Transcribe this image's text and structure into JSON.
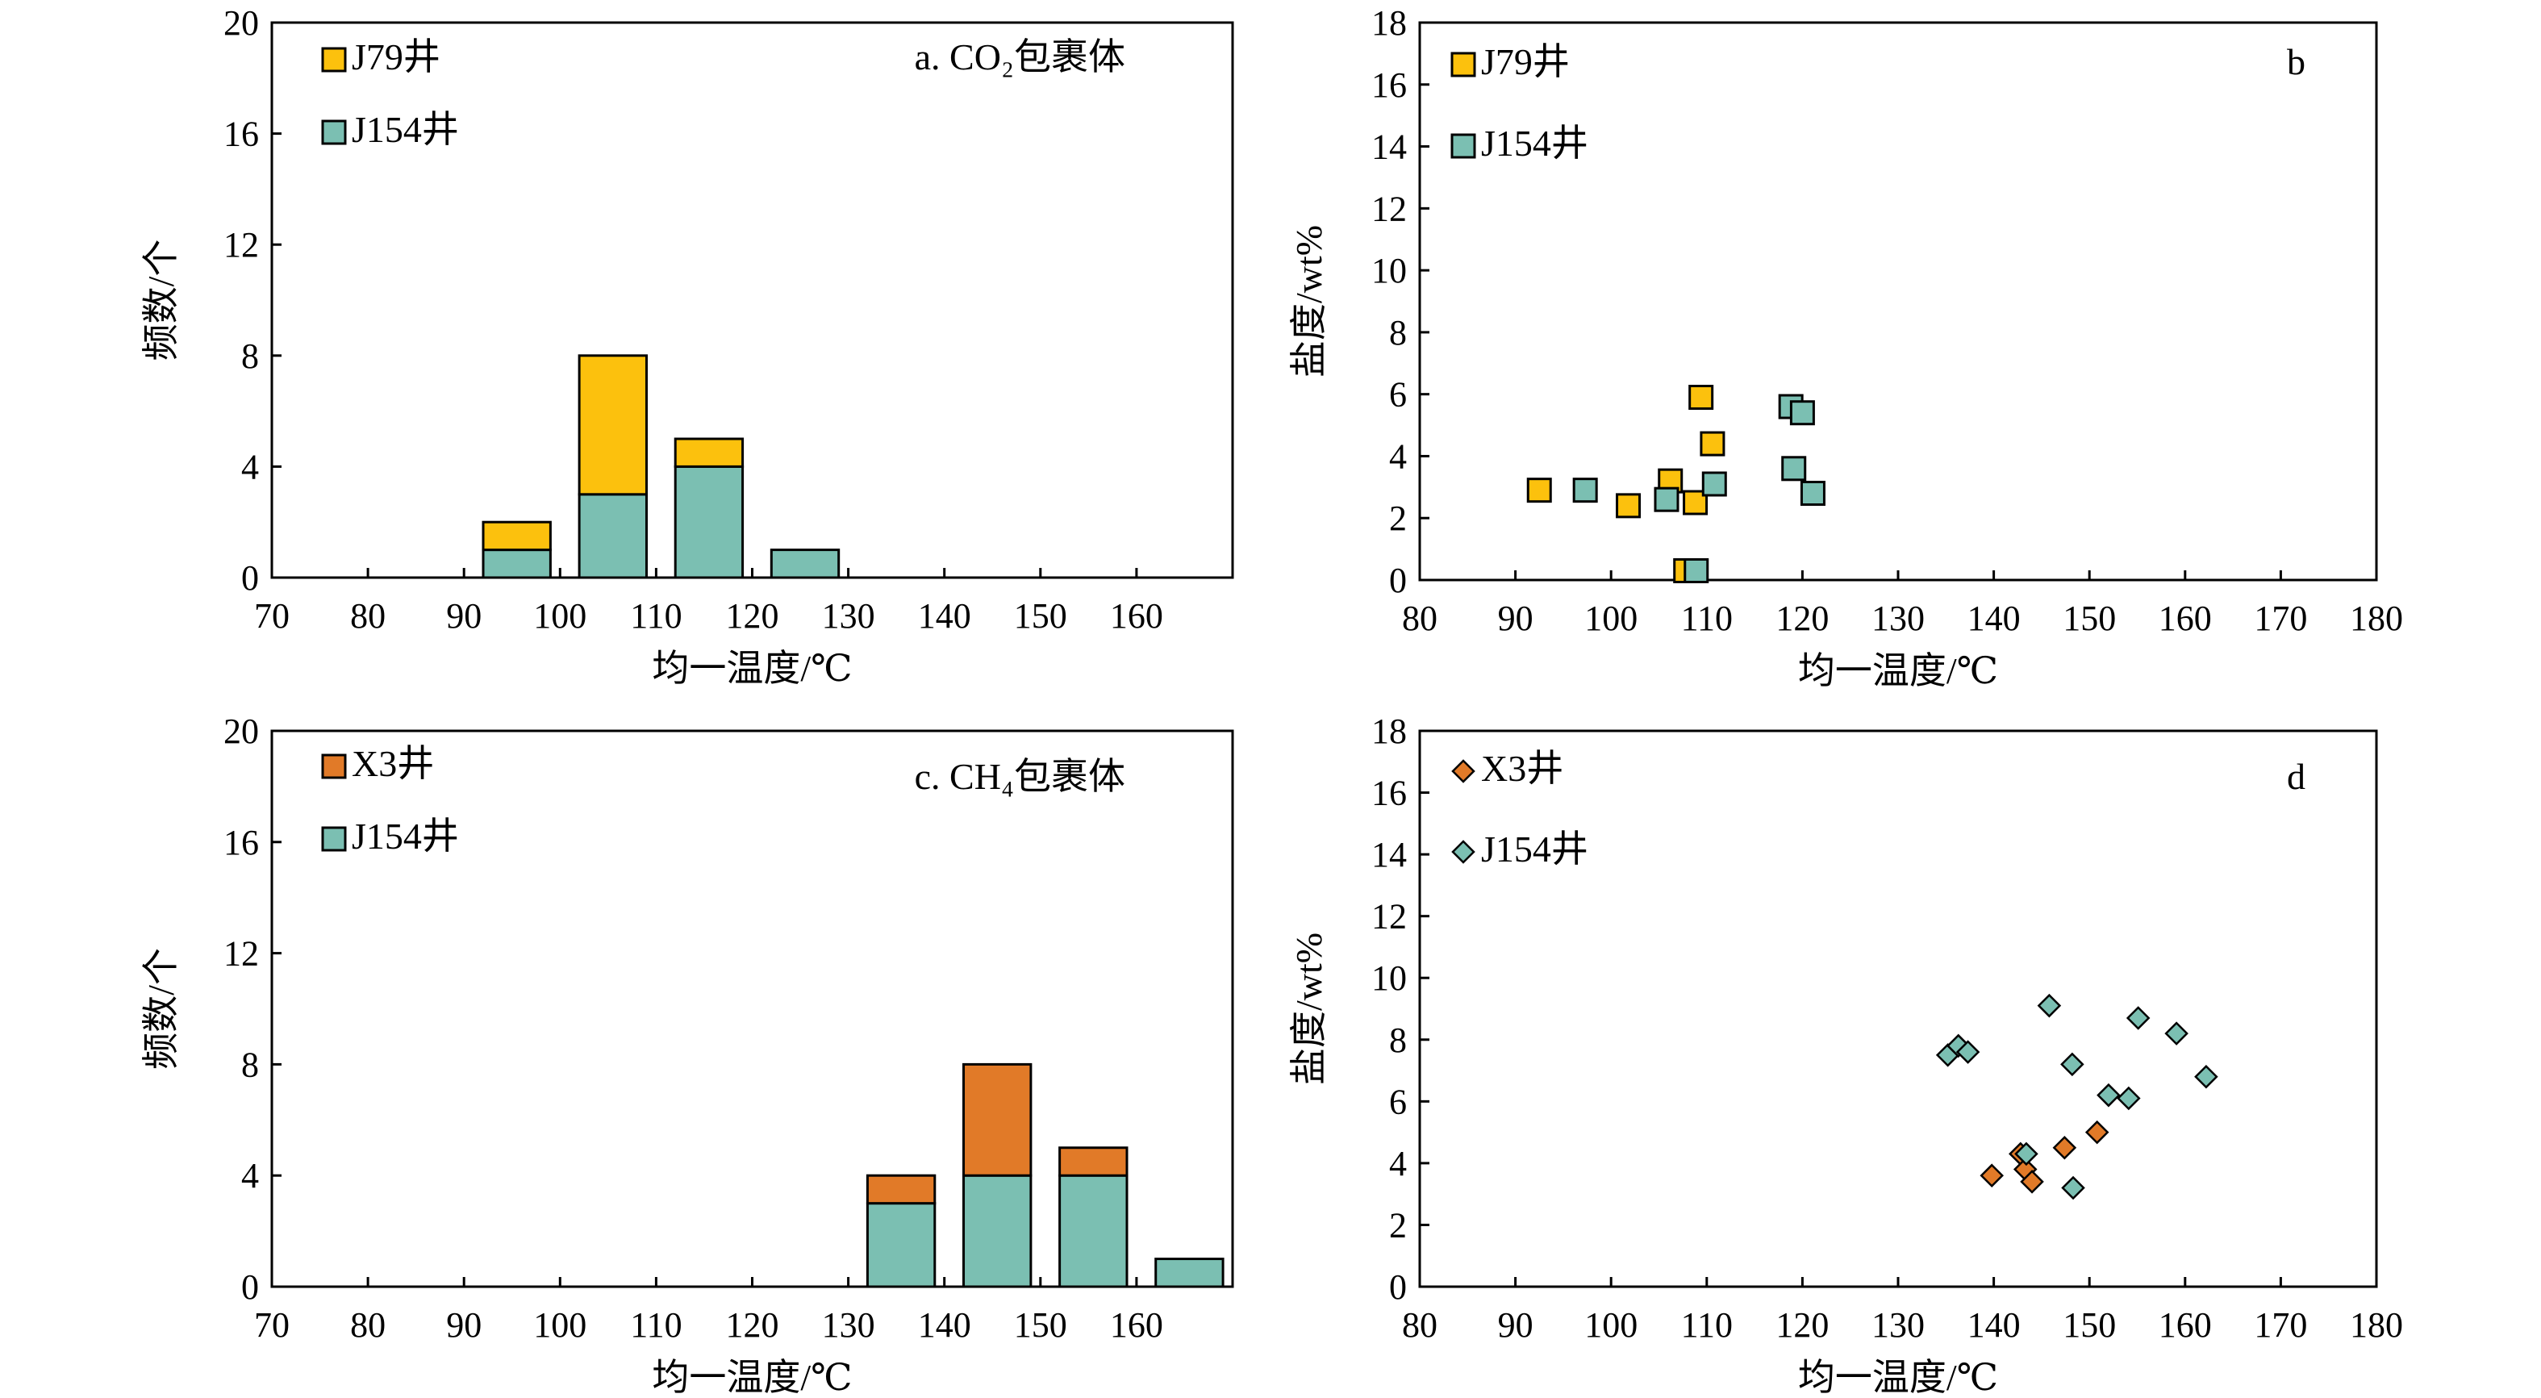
{
  "chart_data": [
    {
      "id": "a",
      "type": "bar",
      "stacked": true,
      "panel_label": "a. CO₂包裹体",
      "xlabel": "均一温度/℃",
      "ylabel": "频数/个",
      "xlim": [
        70,
        170
      ],
      "ylim": [
        0,
        20
      ],
      "xticks": [
        70,
        80,
        90,
        100,
        110,
        120,
        130,
        140,
        150,
        160
      ],
      "yticks": [
        0,
        4,
        8,
        12,
        16,
        20
      ],
      "bins": [
        [
          92,
          99
        ],
        [
          102,
          109
        ],
        [
          112,
          119
        ],
        [
          122,
          129
        ]
      ],
      "series": [
        {
          "name": "J154井",
          "color": "#7bbfb2",
          "values": [
            1,
            3,
            4,
            1
          ]
        },
        {
          "name": "J79井",
          "color": "#fcc10d",
          "values": [
            1,
            5,
            1,
            0
          ]
        }
      ],
      "legend": [
        "J79井",
        "J154井"
      ],
      "legend_position": "top-left"
    },
    {
      "id": "b",
      "type": "scatter",
      "marker": "square",
      "panel_label": "b",
      "xlabel": "均一温度/℃",
      "ylabel": "盐度/wt%",
      "xlim": [
        80,
        180
      ],
      "ylim": [
        0,
        18
      ],
      "xticks": [
        80,
        90,
        100,
        110,
        120,
        130,
        140,
        150,
        160,
        170,
        180
      ],
      "yticks": [
        0,
        2,
        4,
        6,
        8,
        10,
        12,
        14,
        16,
        18
      ],
      "series": [
        {
          "name": "J79井",
          "color": "#fcc10d",
          "points": [
            [
              92.5,
              2.9
            ],
            [
              101.8,
              2.4
            ],
            [
              106.2,
              3.2
            ],
            [
              108.8,
              2.5
            ],
            [
              109.4,
              5.9
            ],
            [
              110.6,
              4.4
            ],
            [
              107.8,
              0.3
            ]
          ]
        },
        {
          "name": "J154井",
          "color": "#7bbfb2",
          "points": [
            [
              97.3,
              2.9
            ],
            [
              105.8,
              2.6
            ],
            [
              110.8,
              3.1
            ],
            [
              108.9,
              0.3
            ],
            [
              118.8,
              5.6
            ],
            [
              120.0,
              5.4
            ],
            [
              119.1,
              3.6
            ],
            [
              121.1,
              2.8
            ]
          ]
        }
      ],
      "legend_position": "top-left"
    },
    {
      "id": "c",
      "type": "bar",
      "stacked": true,
      "panel_label": "c. CH₄包裹体",
      "xlabel": "均一温度/℃",
      "ylabel": "频数/个",
      "xlim": [
        70,
        170
      ],
      "ylim": [
        0,
        20
      ],
      "xticks": [
        70,
        80,
        90,
        100,
        110,
        120,
        130,
        140,
        150,
        160
      ],
      "yticks": [
        0,
        4,
        8,
        12,
        16,
        20
      ],
      "bins": [
        [
          132,
          139
        ],
        [
          142,
          149
        ],
        [
          152,
          159
        ],
        [
          162,
          169
        ]
      ],
      "series": [
        {
          "name": "J154井",
          "color": "#7bbfb2",
          "values": [
            3,
            4,
            4,
            1
          ]
        },
        {
          "name": "X3井",
          "color": "#e17a28",
          "values": [
            1,
            4,
            1,
            0
          ]
        }
      ],
      "legend": [
        "X3井",
        "J154井"
      ],
      "legend_position": "top-left"
    },
    {
      "id": "d",
      "type": "scatter",
      "marker": "diamond",
      "panel_label": "d",
      "xlabel": "均一温度/℃",
      "ylabel": "盐度/wt%",
      "xlim": [
        80,
        180
      ],
      "ylim": [
        0,
        18
      ],
      "xticks": [
        80,
        90,
        100,
        110,
        120,
        130,
        140,
        150,
        160,
        170,
        180
      ],
      "yticks": [
        0,
        2,
        4,
        6,
        8,
        10,
        12,
        14,
        16,
        18
      ],
      "series": [
        {
          "name": "X3井",
          "color": "#e17a28",
          "points": [
            [
              139.8,
              3.6
            ],
            [
              142.8,
              4.3
            ],
            [
              143.3,
              3.8
            ],
            [
              144.0,
              3.4
            ],
            [
              147.4,
              4.5
            ],
            [
              150.8,
              5.0
            ]
          ]
        },
        {
          "name": "J154井",
          "color": "#7bbfb2",
          "points": [
            [
              135.2,
              7.5
            ],
            [
              136.3,
              7.8
            ],
            [
              137.3,
              7.6
            ],
            [
              143.4,
              4.3
            ],
            [
              145.8,
              9.1
            ],
            [
              148.2,
              7.2
            ],
            [
              148.3,
              3.2
            ],
            [
              152.0,
              6.2
            ],
            [
              154.1,
              6.1
            ],
            [
              155.1,
              8.7
            ],
            [
              159.1,
              8.2
            ],
            [
              162.2,
              6.8
            ]
          ]
        }
      ],
      "legend_position": "top-left"
    }
  ]
}
